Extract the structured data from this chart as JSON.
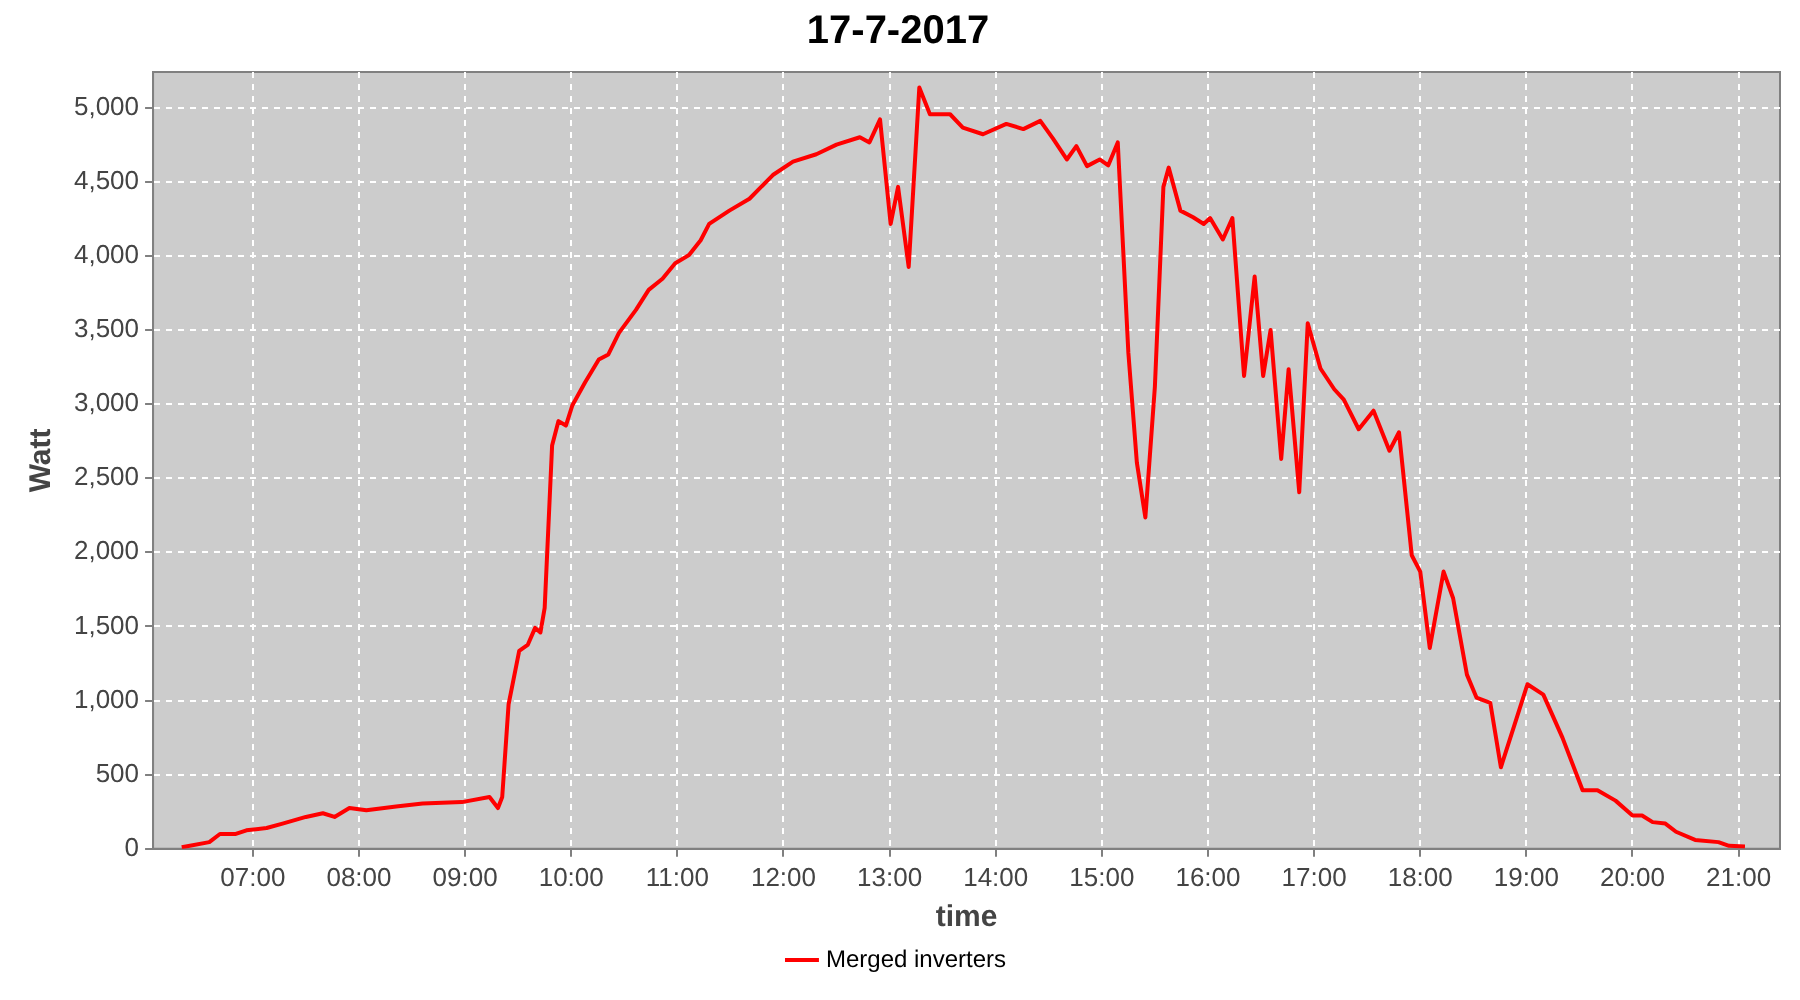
{
  "chart_data": {
    "type": "line",
    "title": "17-7-2017",
    "xlabel": "time",
    "ylabel": "Watt",
    "xlim": [
      6.06,
      21.39
    ],
    "xticks": [
      {
        "value": 7,
        "label": "07:00"
      },
      {
        "value": 8,
        "label": "08:00"
      },
      {
        "value": 9,
        "label": "09:00"
      },
      {
        "value": 10,
        "label": "10:00"
      },
      {
        "value": 11,
        "label": "11:00"
      },
      {
        "value": 12,
        "label": "12:00"
      },
      {
        "value": 13,
        "label": "13:00"
      },
      {
        "value": 14,
        "label": "14:00"
      },
      {
        "value": 15,
        "label": "15:00"
      },
      {
        "value": 16,
        "label": "16:00"
      },
      {
        "value": 17,
        "label": "17:00"
      },
      {
        "value": 18,
        "label": "18:00"
      },
      {
        "value": 19,
        "label": "19:00"
      },
      {
        "value": 20,
        "label": "20:00"
      },
      {
        "value": 21,
        "label": "21:00"
      }
    ],
    "ylim": [
      0,
      5240
    ],
    "yticks": [
      0,
      500,
      {
        "value": 1000,
        "label": "1,000"
      },
      {
        "value": 1500,
        "label": "1,500"
      },
      {
        "value": 2000,
        "label": "2,000"
      },
      {
        "value": 2500,
        "label": "2,500"
      },
      {
        "value": 3000,
        "label": "3,000"
      },
      {
        "value": 3500,
        "label": "3,500"
      },
      {
        "value": 4000,
        "label": "4,000"
      },
      {
        "value": 4500,
        "label": "4,500"
      },
      {
        "value": 5000,
        "label": "5,000"
      }
    ],
    "grid": true,
    "legend": "bottom",
    "line_style": "solid",
    "series": [
      {
        "name": "Merged inverters",
        "color": "#ff0000",
        "x": [
          6.33,
          6.59,
          6.69,
          6.84,
          6.94,
          7.13,
          7.28,
          7.5,
          7.66,
          7.77,
          7.91,
          8.07,
          8.35,
          8.6,
          8.97,
          9.23,
          9.31,
          9.35,
          9.41,
          9.51,
          9.59,
          9.66,
          9.71,
          9.75,
          9.82,
          9.88,
          9.95,
          10.01,
          10.13,
          10.26,
          10.35,
          10.45,
          10.61,
          10.73,
          10.86,
          10.98,
          11.11,
          11.22,
          11.3,
          11.49,
          11.68,
          11.9,
          12.09,
          12.31,
          12.5,
          12.72,
          12.81,
          12.91,
          13.01,
          13.08,
          13.18,
          13.28,
          13.38,
          13.57,
          13.69,
          13.88,
          14.1,
          14.26,
          14.42,
          14.54,
          14.67,
          14.76,
          14.86,
          14.98,
          15.06,
          15.15,
          15.25,
          15.33,
          15.41,
          15.5,
          15.58,
          15.63,
          15.74,
          15.86,
          15.96,
          16.02,
          16.14,
          16.23,
          16.34,
          16.44,
          16.52,
          16.59,
          16.69,
          16.76,
          16.86,
          16.94,
          17.06,
          17.19,
          17.28,
          17.42,
          17.56,
          17.71,
          17.8,
          17.92,
          18,
          18.09,
          18.22,
          18.31,
          18.44,
          18.53,
          18.66,
          18.76,
          18.91,
          19.01,
          19.16,
          19.34,
          19.53,
          19.67,
          19.84,
          20,
          20.09,
          20.19,
          20.31,
          20.41,
          20.59,
          20.81,
          20.91,
          21.06
        ],
        "values": [
          10,
          45,
          100,
          100,
          125,
          140,
          170,
          215,
          240,
          215,
          275,
          260,
          285,
          305,
          315,
          350,
          275,
          350,
          975,
          1335,
          1375,
          1490,
          1460,
          1625,
          2720,
          2885,
          2855,
          2990,
          3145,
          3300,
          3335,
          3480,
          3635,
          3770,
          3845,
          3950,
          4005,
          4105,
          4215,
          4305,
          4385,
          4545,
          4635,
          4685,
          4750,
          4800,
          4765,
          4920,
          4215,
          4465,
          3925,
          5135,
          4955,
          4955,
          4865,
          4820,
          4890,
          4855,
          4910,
          4790,
          4650,
          4740,
          4605,
          4650,
          4610,
          4765,
          3345,
          2605,
          2235,
          3120,
          4465,
          4595,
          4305,
          4260,
          4215,
          4255,
          4110,
          4255,
          3190,
          3860,
          3190,
          3500,
          2630,
          3235,
          2405,
          3545,
          3240,
          3100,
          3030,
          2830,
          2955,
          2685,
          2810,
          1980,
          1870,
          1355,
          1870,
          1690,
          1175,
          1020,
          985,
          550,
          885,
          1110,
          1040,
          750,
          395,
          395,
          325,
          225,
          225,
          180,
          170,
          115,
          60,
          45,
          20,
          15
        ]
      }
    ]
  }
}
